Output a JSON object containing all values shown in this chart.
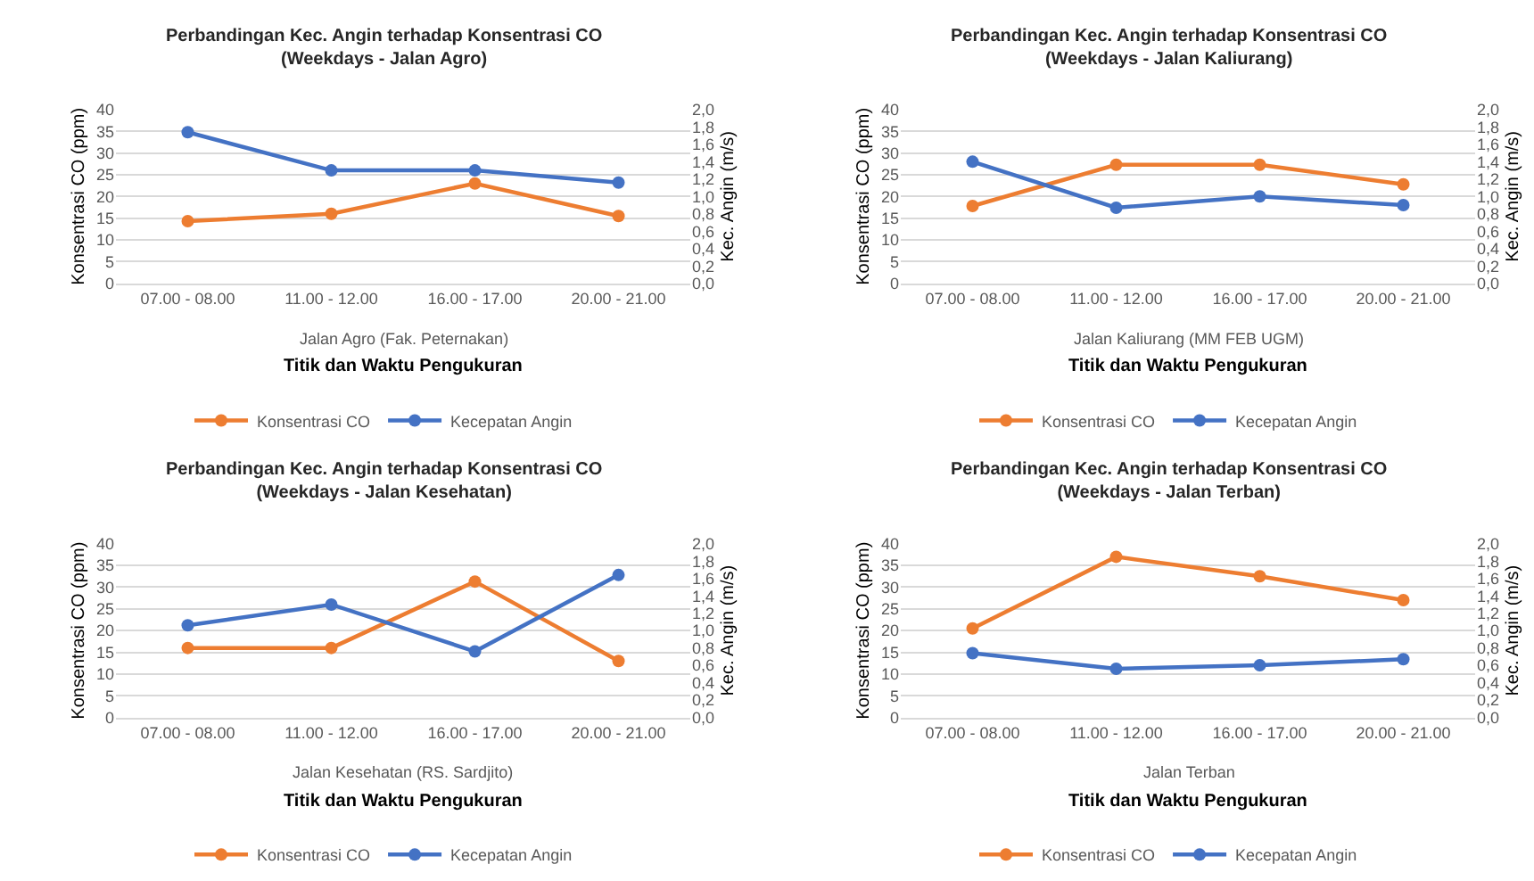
{
  "chart_data": [
    {
      "type": "line",
      "title": "Perbandingan Kec. Angin terhadap Konsentrasi CO\n(Weekdays - Jalan Agro)",
      "xlabel": "Titik dan Waktu Pengukuran",
      "ylabel": "Konsentrasi CO (ppm)",
      "y2label": "Kec. Angin (m/s)",
      "annotations": [
        "Jalan Agro (Fak. Peternakan)"
      ],
      "categories": [
        "07.00 - 08.00",
        "11.00 - 12.00",
        "16.00 - 17.00",
        "20.00 - 21.00"
      ],
      "series": [
        {
          "name": "Konsentrasi CO",
          "color": "#ed7d31",
          "values": [
            14.3,
            16,
            23,
            15.5
          ]
        },
        {
          "name": "Kecepatan Angin",
          "color": "#4472c4",
          "axis": "y2",
          "values": [
            1.74,
            1.3,
            1.3,
            1.16
          ]
        }
      ],
      "ylim": [
        0,
        40
      ],
      "yticks": [
        0,
        5,
        10,
        15,
        20,
        25,
        30,
        35,
        40
      ],
      "y2lim": [
        0,
        2
      ],
      "y2ticks": [
        {
          "value": 0,
          "label": "0,0"
        },
        {
          "value": 0.2,
          "label": "0,2"
        },
        {
          "value": 0.4,
          "label": "0,4"
        },
        {
          "value": 0.6,
          "label": "0,6"
        },
        {
          "value": 0.8,
          "label": "0,8"
        },
        {
          "value": 1,
          "label": "1,0"
        },
        {
          "value": 1.2,
          "label": "1,2"
        },
        {
          "value": 1.4,
          "label": "1,4"
        },
        {
          "value": 1.6,
          "label": "1,6"
        },
        {
          "value": 1.8,
          "label": "1,8"
        },
        {
          "value": 2,
          "label": "2,0"
        }
      ],
      "grid": "y",
      "legend": "bottom",
      "marker": "circle",
      "line_style": "solid"
    },
    {
      "type": "line",
      "title": "Perbandingan Kec. Angin terhadap Konsentrasi CO\n(Weekdays - Jalan Kaliurang)",
      "xlabel": "Titik dan Waktu Pengukuran",
      "ylabel": "Konsentrasi CO (ppm)",
      "y2label": "Kec. Angin (m/s)",
      "annotations": [
        "Jalan Kaliurang (MM FEB UGM)"
      ],
      "categories": [
        "07.00 - 08.00",
        "11.00 - 12.00",
        "16.00 - 17.00",
        "20.00 - 21.00"
      ],
      "series": [
        {
          "name": "Konsentrasi CO",
          "color": "#ed7d31",
          "values": [
            17.8,
            27.3,
            27.3,
            22.8
          ]
        },
        {
          "name": "Kecepatan Angin",
          "color": "#4472c4",
          "axis": "y2",
          "values": [
            1.4,
            0.87,
            1.0,
            0.9
          ]
        }
      ],
      "ylim": [
        0,
        40
      ],
      "yticks": [
        0,
        5,
        10,
        15,
        20,
        25,
        30,
        35,
        40
      ],
      "y2lim": [
        0,
        2
      ],
      "y2ticks": [
        {
          "value": 0,
          "label": "0,0"
        },
        {
          "value": 0.2,
          "label": "0,2"
        },
        {
          "value": 0.4,
          "label": "0,4"
        },
        {
          "value": 0.6,
          "label": "0,6"
        },
        {
          "value": 0.8,
          "label": "0,8"
        },
        {
          "value": 1,
          "label": "1,0"
        },
        {
          "value": 1.2,
          "label": "1,2"
        },
        {
          "value": 1.4,
          "label": "1,4"
        },
        {
          "value": 1.6,
          "label": "1,6"
        },
        {
          "value": 1.8,
          "label": "1,8"
        },
        {
          "value": 2,
          "label": "2,0"
        }
      ],
      "grid": "y",
      "legend": "bottom",
      "marker": "circle",
      "line_style": "solid"
    },
    {
      "type": "line",
      "title": "Perbandingan Kec. Angin terhadap Konsentrasi CO\n(Weekdays - Jalan Kesehatan)",
      "xlabel": "Titik dan Waktu Pengukuran",
      "ylabel": "Konsentrasi CO (ppm)",
      "y2label": "Kec. Angin (m/s)",
      "annotations": [
        "Jalan Kesehatan (RS. Sardjito)"
      ],
      "categories": [
        "07.00 - 08.00",
        "11.00 - 12.00",
        "16.00 - 17.00",
        "20.00 - 21.00"
      ],
      "series": [
        {
          "name": "Konsentrasi CO",
          "color": "#ed7d31",
          "values": [
            16,
            16,
            31.3,
            13
          ]
        },
        {
          "name": "Kecepatan Angin",
          "color": "#4472c4",
          "axis": "y2",
          "values": [
            1.06,
            1.3,
            0.76,
            1.64
          ]
        }
      ],
      "ylim": [
        0,
        40
      ],
      "yticks": [
        0,
        5,
        10,
        15,
        20,
        25,
        30,
        35,
        40
      ],
      "y2lim": [
        0,
        2
      ],
      "y2ticks": [
        {
          "value": 0,
          "label": "0,0"
        },
        {
          "value": 0.2,
          "label": "0,2"
        },
        {
          "value": 0.4,
          "label": "0,4"
        },
        {
          "value": 0.6,
          "label": "0,6"
        },
        {
          "value": 0.8,
          "label": "0,8"
        },
        {
          "value": 1,
          "label": "1,0"
        },
        {
          "value": 1.2,
          "label": "1,2"
        },
        {
          "value": 1.4,
          "label": "1,4"
        },
        {
          "value": 1.6,
          "label": "1,6"
        },
        {
          "value": 1.8,
          "label": "1,8"
        },
        {
          "value": 2,
          "label": "2,0"
        }
      ],
      "grid": "y",
      "legend": "bottom",
      "marker": "circle",
      "line_style": "solid"
    },
    {
      "type": "line",
      "title": "Perbandingan Kec. Angin terhadap Konsentrasi CO\n(Weekdays - Jalan Terban)",
      "xlabel": "Titik dan Waktu Pengukuran",
      "ylabel": "Konsentrasi CO (ppm)",
      "y2label": "Kec. Angin (m/s)",
      "annotations": [
        "Jalan Terban"
      ],
      "categories": [
        "07.00 - 08.00",
        "11.00 - 12.00",
        "16.00 - 17.00",
        "20.00 - 21.00"
      ],
      "series": [
        {
          "name": "Konsentrasi CO",
          "color": "#ed7d31",
          "values": [
            20.5,
            37,
            32.5,
            27
          ]
        },
        {
          "name": "Kecepatan Angin",
          "color": "#4472c4",
          "axis": "y2",
          "values": [
            0.74,
            0.56,
            0.6,
            0.67
          ]
        }
      ],
      "ylim": [
        0,
        40
      ],
      "yticks": [
        0,
        5,
        10,
        15,
        20,
        25,
        30,
        35,
        40
      ],
      "y2lim": [
        0,
        2
      ],
      "y2ticks": [
        {
          "value": 0,
          "label": "0,0"
        },
        {
          "value": 0.2,
          "label": "0,2"
        },
        {
          "value": 0.4,
          "label": "0,4"
        },
        {
          "value": 0.6,
          "label": "0,6"
        },
        {
          "value": 0.8,
          "label": "0,8"
        },
        {
          "value": 1,
          "label": "1,0"
        },
        {
          "value": 1.2,
          "label": "1,2"
        },
        {
          "value": 1.4,
          "label": "1,4"
        },
        {
          "value": 1.6,
          "label": "1,6"
        },
        {
          "value": 1.8,
          "label": "1,8"
        },
        {
          "value": 2,
          "label": "2,0"
        }
      ],
      "grid": "y",
      "legend": "bottom",
      "marker": "circle",
      "line_style": "solid"
    }
  ]
}
